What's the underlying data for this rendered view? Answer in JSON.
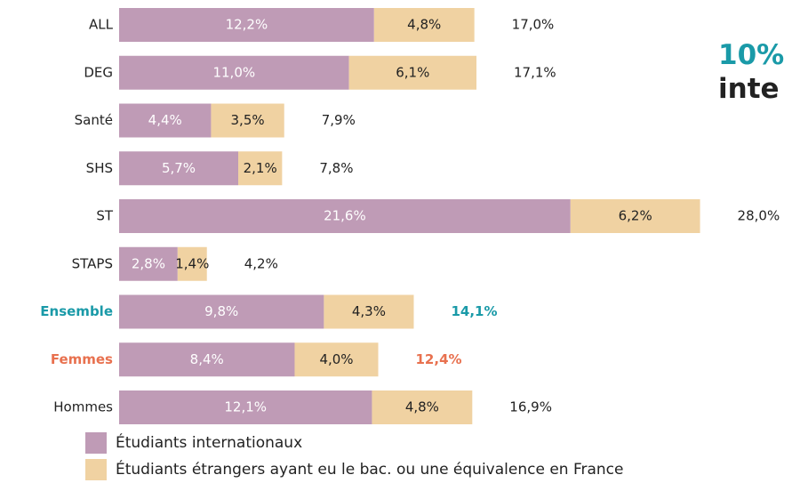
{
  "chart_data": {
    "type": "stacked-bar-horizontal",
    "annotations": [
      "10%",
      "inte"
    ],
    "categories": [
      "ALL",
      "DEG",
      "Santé",
      "SHS",
      "ST",
      "STAPS",
      "Ensemble",
      "Femmes",
      "Hommes"
    ],
    "label_colors": [
      null,
      null,
      null,
      null,
      null,
      null,
      "#1a9aa8",
      "#e8714f",
      null
    ],
    "series": [
      {
        "name": "Étudiants internationaux",
        "color": "#bf9bb6",
        "values": [
          12.2,
          11.0,
          4.4,
          5.7,
          21.6,
          2.8,
          9.8,
          8.4,
          12.1
        ],
        "value_labels": [
          "12,2%",
          "11,0%",
          "4,4%",
          "5,7%",
          "21,6%",
          "2,8%",
          "9,8%",
          "8,4%",
          "12,1%"
        ]
      },
      {
        "name": "Étudiants étrangers ayant eu le bac. ou une équivalence en France",
        "color": "#f0d2a2",
        "values": [
          4.8,
          6.1,
          3.5,
          2.1,
          6.2,
          1.4,
          4.3,
          4.0,
          4.8
        ],
        "value_labels": [
          "4,8%",
          "6,1%",
          "3,5%",
          "2,1%",
          "6,2%",
          "1,4%",
          "4,3%",
          "4,0%",
          "4,8%"
        ]
      }
    ],
    "totals": [
      17.0,
      17.1,
      7.9,
      7.8,
      28.0,
      4.2,
      14.1,
      12.4,
      16.9
    ],
    "total_labels": [
      "17,0%",
      "17,1%",
      "7,9%",
      "7,8%",
      "28,0%",
      "4,2%",
      "14,1%",
      "12,4%",
      "16,9%"
    ],
    "xlim": [
      0,
      32.2
    ]
  }
}
